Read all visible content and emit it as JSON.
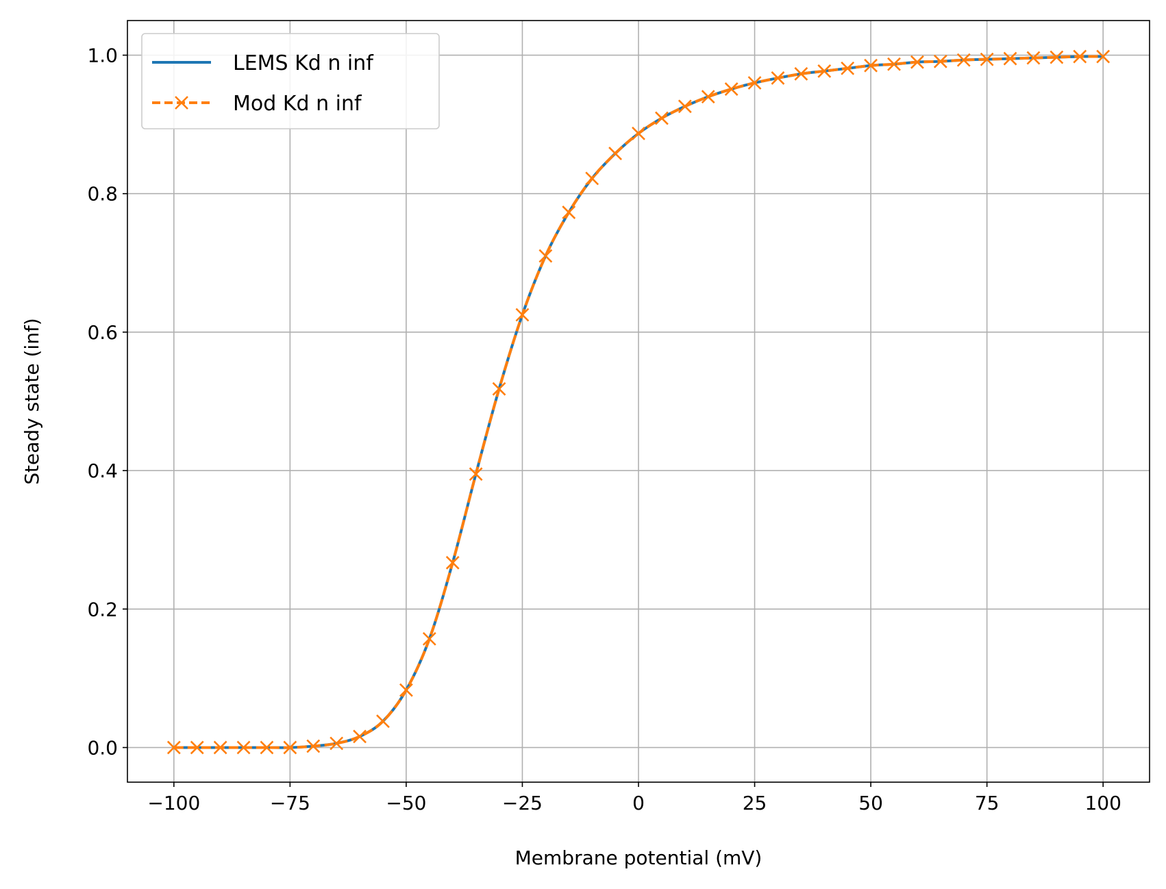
{
  "chart_data": {
    "type": "line",
    "xlabel": "Membrane potential (mV)",
    "ylabel": "Steady state (inf)",
    "xlim": [
      -110,
      110
    ],
    "ylim": [
      -0.05,
      1.05
    ],
    "grid": true,
    "legend_position": "top-left",
    "x_ticks": [
      -100,
      -75,
      -50,
      -25,
      0,
      25,
      50,
      75,
      100
    ],
    "x_tick_labels": [
      "−100",
      "−75",
      "−50",
      "−25",
      "0",
      "25",
      "50",
      "75",
      "100"
    ],
    "y_ticks": [
      0.0,
      0.2,
      0.4,
      0.6,
      0.8,
      1.0
    ],
    "y_tick_labels": [
      "0.0",
      "0.2",
      "0.4",
      "0.6",
      "0.8",
      "1.0"
    ],
    "series": [
      {
        "name": "LEMS Kd n inf",
        "color": "#1f77b4",
        "style": "solid",
        "marker": "none",
        "x": [
          -100,
          -95,
          -90,
          -85,
          -80,
          -75,
          -70,
          -65,
          -60,
          -55,
          -50,
          -45,
          -40,
          -35,
          -30,
          -25,
          -20,
          -15,
          -10,
          -5,
          0,
          5,
          10,
          15,
          20,
          25,
          30,
          35,
          40,
          45,
          50,
          55,
          60,
          65,
          70,
          75,
          80,
          85,
          90,
          95,
          100
        ],
        "y": [
          0.0,
          0.0,
          0.0,
          0.0,
          0.0,
          0.0,
          0.002,
          0.006,
          0.016,
          0.038,
          0.083,
          0.157,
          0.267,
          0.395,
          0.518,
          0.625,
          0.71,
          0.773,
          0.822,
          0.858,
          0.887,
          0.909,
          0.926,
          0.94,
          0.951,
          0.96,
          0.967,
          0.973,
          0.977,
          0.981,
          0.985,
          0.987,
          0.99,
          0.991,
          0.993,
          0.994,
          0.995,
          0.996,
          0.997,
          0.998,
          0.998
        ]
      },
      {
        "name": "Mod Kd n inf",
        "color": "#ff7f0e",
        "style": "dashed",
        "marker": "x",
        "x": [
          -100,
          -95,
          -90,
          -85,
          -80,
          -75,
          -70,
          -65,
          -60,
          -55,
          -50,
          -45,
          -40,
          -35,
          -30,
          -25,
          -20,
          -15,
          -10,
          -5,
          0,
          5,
          10,
          15,
          20,
          25,
          30,
          35,
          40,
          45,
          50,
          55,
          60,
          65,
          70,
          75,
          80,
          85,
          90,
          95,
          100
        ],
        "y": [
          0.0,
          0.0,
          0.0,
          0.0,
          0.0,
          0.0,
          0.002,
          0.006,
          0.016,
          0.038,
          0.083,
          0.157,
          0.267,
          0.395,
          0.518,
          0.625,
          0.71,
          0.773,
          0.822,
          0.858,
          0.887,
          0.909,
          0.926,
          0.94,
          0.951,
          0.96,
          0.967,
          0.973,
          0.977,
          0.981,
          0.985,
          0.987,
          0.99,
          0.991,
          0.993,
          0.994,
          0.995,
          0.996,
          0.997,
          0.998,
          0.998
        ]
      }
    ]
  }
}
